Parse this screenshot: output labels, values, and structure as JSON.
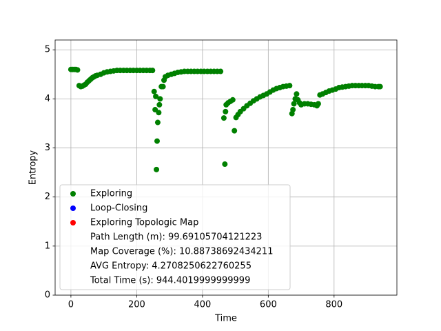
{
  "chart_data": {
    "type": "scatter",
    "xlabel": "Time",
    "ylabel": "Entropy",
    "xlim": [
      -48,
      991
    ],
    "ylim": [
      0,
      5.2
    ],
    "xticks": [
      0,
      200,
      400,
      600,
      800
    ],
    "yticks": [
      0,
      1,
      2,
      3,
      4,
      5
    ],
    "grid": true,
    "legend": "lower left",
    "series": [
      {
        "name": "Exploring",
        "color": "#008000",
        "x": [
          0,
          5,
          10,
          15,
          20,
          25,
          30,
          35,
          40,
          45,
          50,
          55,
          60,
          65,
          70,
          75,
          80,
          90,
          100,
          110,
          120,
          130,
          140,
          150,
          160,
          170,
          180,
          190,
          200,
          210,
          220,
          230,
          240,
          248,
          253,
          256,
          258,
          260,
          262,
          264,
          267,
          269,
          271,
          275,
          280,
          283,
          287,
          295,
          305,
          315,
          325,
          335,
          345,
          355,
          365,
          375,
          385,
          395,
          405,
          415,
          425,
          435,
          445,
          455,
          465,
          468,
          470,
          472,
          478,
          485,
          492,
          497,
          502,
          508,
          515,
          525,
          535,
          545,
          555,
          565,
          575,
          585,
          595,
          605,
          615,
          625,
          635,
          645,
          655,
          665,
          672,
          675,
          678,
          682,
          686,
          690,
          695,
          700,
          710,
          720,
          730,
          740,
          748,
          752,
          757,
          765,
          775,
          785,
          795,
          805,
          815,
          825,
          835,
          845,
          855,
          865,
          875,
          885,
          895,
          905,
          915,
          925,
          935,
          940
        ],
        "values": [
          4.6,
          4.6,
          4.6,
          4.6,
          4.59,
          4.27,
          4.25,
          4.26,
          4.28,
          4.3,
          4.34,
          4.37,
          4.4,
          4.43,
          4.45,
          4.47,
          4.48,
          4.5,
          4.53,
          4.55,
          4.56,
          4.57,
          4.58,
          4.58,
          4.58,
          4.58,
          4.58,
          4.58,
          4.58,
          4.58,
          4.58,
          4.58,
          4.58,
          4.58,
          4.15,
          3.78,
          4.05,
          2.56,
          3.14,
          3.52,
          3.72,
          3.88,
          4.0,
          4.25,
          4.25,
          4.38,
          4.45,
          4.48,
          4.5,
          4.52,
          4.54,
          4.55,
          4.56,
          4.56,
          4.56,
          4.56,
          4.56,
          4.56,
          4.56,
          4.56,
          4.56,
          4.56,
          4.56,
          4.56,
          3.61,
          2.67,
          3.74,
          3.88,
          3.92,
          3.95,
          3.98,
          3.35,
          3.62,
          3.68,
          3.74,
          3.8,
          3.86,
          3.91,
          3.96,
          4.0,
          4.04,
          4.07,
          4.1,
          4.14,
          4.18,
          4.21,
          4.23,
          4.25,
          4.26,
          4.27,
          3.7,
          3.78,
          3.9,
          4.0,
          4.1,
          3.98,
          3.92,
          3.88,
          3.9,
          3.9,
          3.89,
          3.88,
          3.86,
          3.9,
          4.08,
          4.1,
          4.13,
          4.16,
          4.18,
          4.2,
          4.23,
          4.24,
          4.25,
          4.26,
          4.27,
          4.27,
          4.27,
          4.27,
          4.27,
          4.27,
          4.26,
          4.25,
          4.25,
          4.25
        ]
      },
      {
        "name": "Loop-Closing",
        "color": "#0000ff",
        "x": [],
        "values": []
      },
      {
        "name": "Exploring Topologic Map",
        "color": "#ff0000",
        "x": [],
        "values": []
      }
    ],
    "legend_notes": [
      "Path Length (m): 99.69105704121223",
      "Map Coverage (%): 10.88738692434211",
      "AVG Entropy: 4.2708250622760255",
      "Total Time (s): 944.4019999999999"
    ]
  }
}
